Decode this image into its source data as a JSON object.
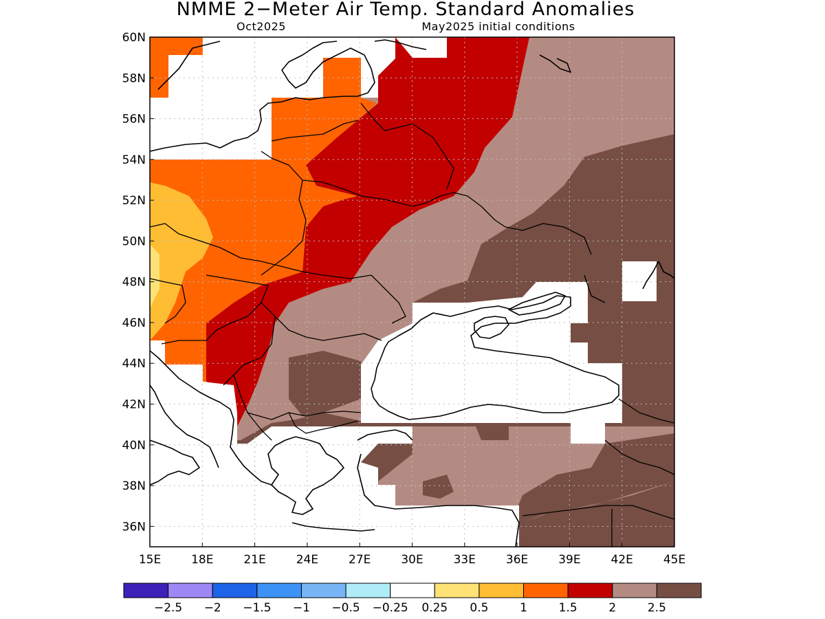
{
  "title": "NMME 2−Meter Air Temp. Standard Anomalies",
  "subtitle_left": "Oct2025",
  "subtitle_right": "May2025 initial conditions",
  "map": {
    "lon_range": [
      15,
      45
    ],
    "lat_range": [
      35,
      60
    ],
    "lon_ticks": [
      "15E",
      "18E",
      "21E",
      "24E",
      "27E",
      "30E",
      "33E",
      "36E",
      "39E",
      "42E",
      "45E"
    ],
    "lat_ticks": [
      "60N",
      "58N",
      "56N",
      "54N",
      "52N",
      "50N",
      "48N",
      "46N",
      "44N",
      "42N",
      "40N",
      "38N",
      "36N"
    ],
    "grid": true
  },
  "colorbar": {
    "colors": [
      "#3c21b9",
      "#9d88f6",
      "#1e64e8",
      "#3d92f5",
      "#78b5f5",
      "#b0ecf7",
      "#ffffff",
      "#ffe276",
      "#ffbd33",
      "#ff6400",
      "#c30000",
      "#b48b82",
      "#764e43"
    ],
    "labels": [
      "−2.5",
      "−2",
      "−1.5",
      "−1",
      "−0.5",
      "−0.25",
      "0.25",
      "0.5",
      "1",
      "1.5",
      "2",
      "2.5"
    ]
  },
  "palette": {
    "c05": "#ffe276",
    "c1": "#ffbd33",
    "c15": "#ff6400",
    "c2": "#c30000",
    "c25": "#b48b82",
    "c3": "#764e43"
  }
}
